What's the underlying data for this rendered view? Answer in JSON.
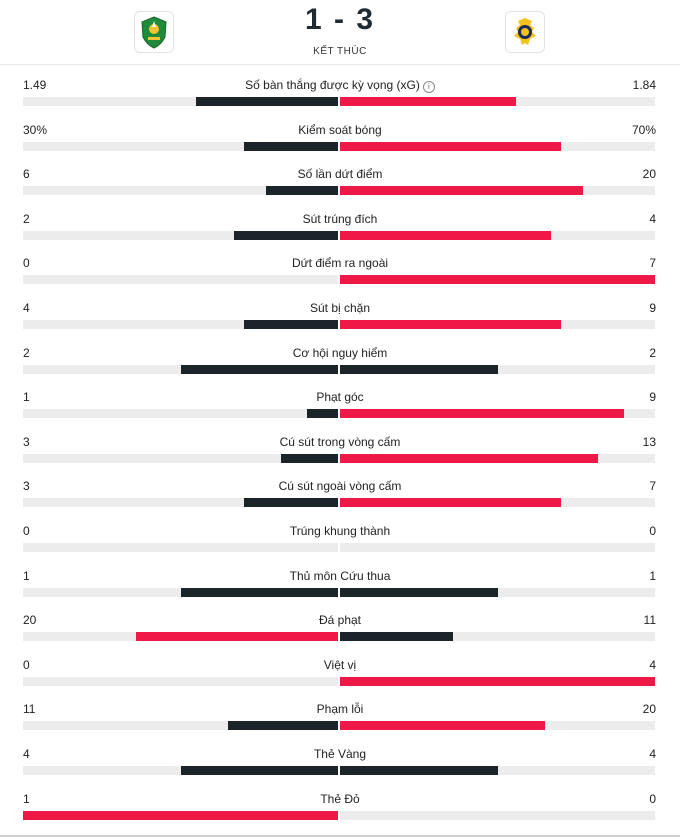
{
  "match": {
    "score": "1 - 3",
    "status": "KẾT THÚC"
  },
  "colors": {
    "dark": "#1b2429",
    "red": "#ee1947",
    "track": "#ececec"
  },
  "stats": [
    {
      "label": "Số bàn thắng được kỳ vọng (xG)",
      "info": true,
      "left": "1.49",
      "right": "1.84",
      "lfrac": 0.45,
      "rfrac": 0.56,
      "lcolor": "dark",
      "rcolor": "red"
    },
    {
      "label": "Kiểm soát bóng",
      "left": "30%",
      "right": "70%",
      "lfrac": 0.3,
      "rfrac": 0.7,
      "lcolor": "dark",
      "rcolor": "red"
    },
    {
      "label": "Số lần dứt điểm",
      "left": "6",
      "right": "20",
      "lfrac": 0.23,
      "rfrac": 0.77,
      "lcolor": "dark",
      "rcolor": "red"
    },
    {
      "label": "Sút trúng đích",
      "left": "2",
      "right": "4",
      "lfrac": 0.33,
      "rfrac": 0.67,
      "lcolor": "dark",
      "rcolor": "red"
    },
    {
      "label": "Dứt điểm ra ngoài",
      "left": "0",
      "right": "7",
      "lfrac": 0.0,
      "rfrac": 1.0,
      "lcolor": "dark",
      "rcolor": "red"
    },
    {
      "label": "Sút bị chặn",
      "left": "4",
      "right": "9",
      "lfrac": 0.3,
      "rfrac": 0.7,
      "lcolor": "dark",
      "rcolor": "red"
    },
    {
      "label": "Cơ hội nguy hiểm",
      "left": "2",
      "right": "2",
      "lfrac": 0.5,
      "rfrac": 0.5,
      "lcolor": "dark",
      "rcolor": "dark"
    },
    {
      "label": "Phạt góc",
      "left": "1",
      "right": "9",
      "lfrac": 0.1,
      "rfrac": 0.9,
      "lcolor": "dark",
      "rcolor": "red"
    },
    {
      "label": "Cú sút trong vòng cấm",
      "left": "3",
      "right": "13",
      "lfrac": 0.18,
      "rfrac": 0.82,
      "lcolor": "dark",
      "rcolor": "red"
    },
    {
      "label": "Cú sút ngoài vòng cấm",
      "left": "3",
      "right": "7",
      "lfrac": 0.3,
      "rfrac": 0.7,
      "lcolor": "dark",
      "rcolor": "red"
    },
    {
      "label": "Trúng khung thành",
      "left": "0",
      "right": "0",
      "lfrac": 0.0,
      "rfrac": 0.0,
      "lcolor": "dark",
      "rcolor": "dark"
    },
    {
      "label": "Thủ môn Cứu thua",
      "left": "1",
      "right": "1",
      "lfrac": 0.5,
      "rfrac": 0.5,
      "lcolor": "dark",
      "rcolor": "dark"
    },
    {
      "label": "Đá phạt",
      "left": "20",
      "right": "11",
      "lfrac": 0.64,
      "rfrac": 0.36,
      "lcolor": "red",
      "rcolor": "dark"
    },
    {
      "label": "Việt vị",
      "left": "0",
      "right": "4",
      "lfrac": 0.0,
      "rfrac": 1.0,
      "lcolor": "dark",
      "rcolor": "red"
    },
    {
      "label": "Phạm lỗi",
      "left": "11",
      "right": "20",
      "lfrac": 0.35,
      "rfrac": 0.65,
      "lcolor": "dark",
      "rcolor": "red"
    },
    {
      "label": "Thẻ Vàng",
      "left": "4",
      "right": "4",
      "lfrac": 0.5,
      "rfrac": 0.5,
      "lcolor": "dark",
      "rcolor": "dark"
    },
    {
      "label": "Thẻ Đỏ",
      "left": "1",
      "right": "0",
      "lfrac": 1.0,
      "rfrac": 0.0,
      "lcolor": "red",
      "rcolor": "dark"
    }
  ]
}
